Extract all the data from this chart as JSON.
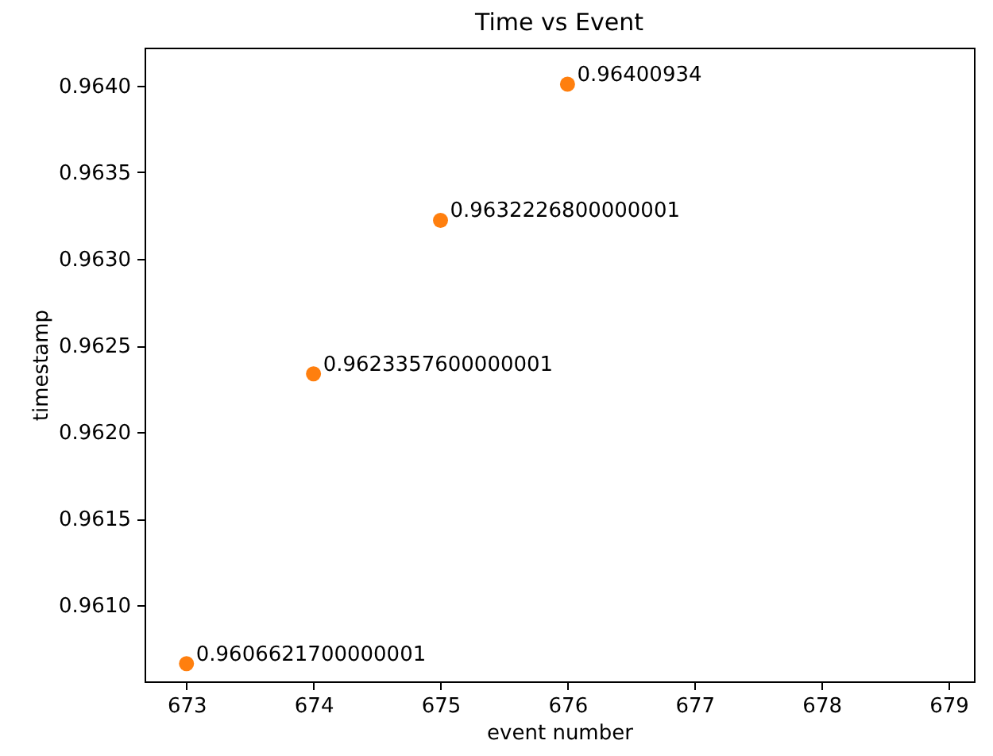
{
  "chart_data": {
    "type": "scatter",
    "title": "Time vs Event",
    "xlabel": "event number",
    "ylabel": "timestamp",
    "x": [
      673,
      674,
      675,
      676
    ],
    "series": [
      {
        "color": "#ff7f0e",
        "values": [
          0.9606621700000001,
          0.9623357600000001,
          0.9632226800000001,
          0.96400934
        ]
      }
    ],
    "data_labels": true,
    "marker": "circle",
    "grid": false,
    "legend": false,
    "xlim": [
      672.67,
      679.2
    ],
    "xticks": [
      673,
      674,
      675,
      676,
      677,
      678,
      679
    ],
    "ylim": [
      0.96056,
      0.96422
    ],
    "yticks": [
      {
        "value": 0.961,
        "label": "0.9610"
      },
      0.9615,
      {
        "value": 0.962,
        "label": "0.9620"
      },
      0.9625,
      {
        "value": 0.963,
        "label": "0.9630"
      },
      0.9635,
      {
        "value": 0.964,
        "label": "0.9640"
      }
    ]
  }
}
